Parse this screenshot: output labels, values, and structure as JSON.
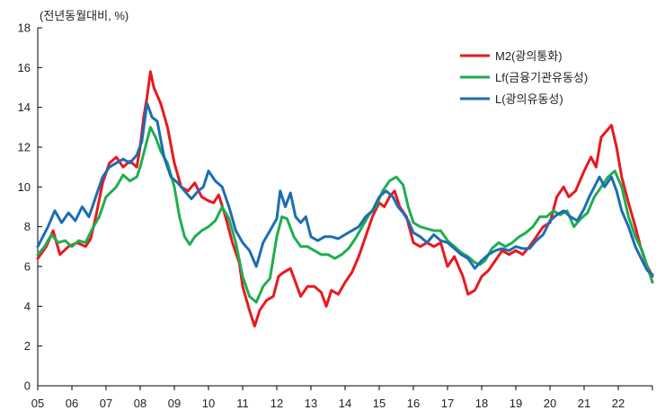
{
  "chart_data": {
    "type": "line",
    "unit_label": "(전년동월대비, %)",
    "ylim": [
      0,
      18
    ],
    "y_ticks": [
      "0",
      "2",
      "4",
      "6",
      "8",
      "10",
      "12",
      "14",
      "16",
      "18"
    ],
    "xlim": [
      2005.0,
      2023.0
    ],
    "x_ticks": [
      "05",
      "06",
      "07",
      "08",
      "09",
      "10",
      "11",
      "12",
      "13",
      "14",
      "15",
      "16",
      "17",
      "18",
      "19",
      "20",
      "21",
      "22"
    ],
    "legend_position": "top-right",
    "series": [
      {
        "name": "M2(광의통화)",
        "color": "#e8191e",
        "points": [
          [
            2005.0,
            6.4
          ],
          [
            2005.25,
            7.0
          ],
          [
            2005.45,
            7.8
          ],
          [
            2005.65,
            6.6
          ],
          [
            2005.9,
            7.0
          ],
          [
            2006.15,
            7.2
          ],
          [
            2006.4,
            7.0
          ],
          [
            2006.55,
            7.4
          ],
          [
            2006.7,
            8.5
          ],
          [
            2006.9,
            10.2
          ],
          [
            2007.1,
            11.2
          ],
          [
            2007.3,
            11.5
          ],
          [
            2007.5,
            11.0
          ],
          [
            2007.7,
            11.3
          ],
          [
            2007.9,
            11.0
          ],
          [
            2008.0,
            12.0
          ],
          [
            2008.1,
            13.5
          ],
          [
            2008.2,
            14.5
          ],
          [
            2008.3,
            15.8
          ],
          [
            2008.4,
            15.0
          ],
          [
            2008.6,
            14.2
          ],
          [
            2008.8,
            13.0
          ],
          [
            2009.0,
            11.2
          ],
          [
            2009.2,
            10.0
          ],
          [
            2009.4,
            9.8
          ],
          [
            2009.6,
            10.2
          ],
          [
            2009.8,
            9.5
          ],
          [
            2010.0,
            9.3
          ],
          [
            2010.15,
            9.2
          ],
          [
            2010.3,
            9.6
          ],
          [
            2010.5,
            8.5
          ],
          [
            2010.7,
            7.2
          ],
          [
            2010.9,
            6.2
          ],
          [
            2011.0,
            5.0
          ],
          [
            2011.2,
            3.8
          ],
          [
            2011.35,
            3.0
          ],
          [
            2011.5,
            3.8
          ],
          [
            2011.7,
            4.3
          ],
          [
            2011.9,
            4.5
          ],
          [
            2012.05,
            5.5
          ],
          [
            2012.2,
            5.7
          ],
          [
            2012.4,
            5.9
          ],
          [
            2012.55,
            5.2
          ],
          [
            2012.7,
            4.5
          ],
          [
            2012.9,
            5.0
          ],
          [
            2013.1,
            5.0
          ],
          [
            2013.3,
            4.7
          ],
          [
            2013.45,
            4.0
          ],
          [
            2013.6,
            4.8
          ],
          [
            2013.8,
            4.6
          ],
          [
            2014.0,
            5.2
          ],
          [
            2014.2,
            5.7
          ],
          [
            2014.4,
            6.5
          ],
          [
            2014.6,
            7.5
          ],
          [
            2014.8,
            8.5
          ],
          [
            2015.0,
            9.2
          ],
          [
            2015.15,
            9.0
          ],
          [
            2015.3,
            9.5
          ],
          [
            2015.45,
            9.8
          ],
          [
            2015.6,
            9.0
          ],
          [
            2015.8,
            8.5
          ],
          [
            2016.0,
            7.2
          ],
          [
            2016.2,
            7.0
          ],
          [
            2016.4,
            7.2
          ],
          [
            2016.6,
            7.0
          ],
          [
            2016.8,
            7.2
          ],
          [
            2017.0,
            6.0
          ],
          [
            2017.2,
            6.5
          ],
          [
            2017.45,
            5.5
          ],
          [
            2017.6,
            4.6
          ],
          [
            2017.8,
            4.8
          ],
          [
            2018.0,
            5.5
          ],
          [
            2018.2,
            5.8
          ],
          [
            2018.4,
            6.3
          ],
          [
            2018.6,
            6.8
          ],
          [
            2018.8,
            6.6
          ],
          [
            2019.0,
            6.8
          ],
          [
            2019.2,
            6.6
          ],
          [
            2019.4,
            7.0
          ],
          [
            2019.6,
            7.5
          ],
          [
            2019.8,
            8.0
          ],
          [
            2020.0,
            8.2
          ],
          [
            2020.2,
            9.5
          ],
          [
            2020.4,
            10.0
          ],
          [
            2020.55,
            9.5
          ],
          [
            2020.75,
            9.8
          ],
          [
            2021.0,
            10.8
          ],
          [
            2021.2,
            11.5
          ],
          [
            2021.35,
            11.0
          ],
          [
            2021.5,
            12.5
          ],
          [
            2021.65,
            12.8
          ],
          [
            2021.8,
            13.1
          ],
          [
            2021.95,
            12.0
          ],
          [
            2022.1,
            10.5
          ],
          [
            2022.3,
            9.2
          ],
          [
            2022.5,
            8.0
          ],
          [
            2022.65,
            7.0
          ],
          [
            2022.8,
            6.2
          ],
          [
            2023.0,
            5.5
          ]
        ]
      },
      {
        "name": "Lf(금융기관유동성)",
        "color": "#1fae50",
        "points": [
          [
            2005.0,
            6.6
          ],
          [
            2005.2,
            7.0
          ],
          [
            2005.4,
            7.6
          ],
          [
            2005.6,
            7.2
          ],
          [
            2005.8,
            7.3
          ],
          [
            2006.0,
            7.0
          ],
          [
            2006.2,
            7.3
          ],
          [
            2006.4,
            7.2
          ],
          [
            2006.6,
            7.9
          ],
          [
            2006.8,
            8.5
          ],
          [
            2007.0,
            9.5
          ],
          [
            2007.3,
            10.0
          ],
          [
            2007.5,
            10.6
          ],
          [
            2007.7,
            10.3
          ],
          [
            2007.9,
            10.5
          ],
          [
            2008.0,
            11.0
          ],
          [
            2008.15,
            12.0
          ],
          [
            2008.3,
            13.0
          ],
          [
            2008.45,
            12.5
          ],
          [
            2008.6,
            11.8
          ],
          [
            2008.8,
            11.2
          ],
          [
            2009.0,
            10.0
          ],
          [
            2009.15,
            8.5
          ],
          [
            2009.3,
            7.5
          ],
          [
            2009.45,
            7.1
          ],
          [
            2009.6,
            7.5
          ],
          [
            2009.8,
            7.8
          ],
          [
            2010.0,
            8.0
          ],
          [
            2010.2,
            8.3
          ],
          [
            2010.4,
            9.0
          ],
          [
            2010.6,
            8.4
          ],
          [
            2010.8,
            7.2
          ],
          [
            2011.0,
            5.5
          ],
          [
            2011.2,
            4.5
          ],
          [
            2011.4,
            4.2
          ],
          [
            2011.6,
            5.0
          ],
          [
            2011.8,
            5.4
          ],
          [
            2012.0,
            7.5
          ],
          [
            2012.15,
            8.5
          ],
          [
            2012.3,
            8.4
          ],
          [
            2012.5,
            7.5
          ],
          [
            2012.7,
            7.0
          ],
          [
            2012.9,
            7.0
          ],
          [
            2013.1,
            6.8
          ],
          [
            2013.3,
            6.6
          ],
          [
            2013.5,
            6.6
          ],
          [
            2013.7,
            6.4
          ],
          [
            2013.9,
            6.6
          ],
          [
            2014.1,
            6.9
          ],
          [
            2014.3,
            7.4
          ],
          [
            2014.5,
            8.0
          ],
          [
            2014.7,
            8.6
          ],
          [
            2014.9,
            9.0
          ],
          [
            2015.1,
            9.8
          ],
          [
            2015.3,
            10.3
          ],
          [
            2015.5,
            10.5
          ],
          [
            2015.7,
            10.1
          ],
          [
            2015.85,
            9.0
          ],
          [
            2016.0,
            8.2
          ],
          [
            2016.2,
            8.0
          ],
          [
            2016.4,
            7.9
          ],
          [
            2016.6,
            7.8
          ],
          [
            2016.8,
            7.8
          ],
          [
            2017.0,
            7.3
          ],
          [
            2017.2,
            7.0
          ],
          [
            2017.4,
            6.7
          ],
          [
            2017.6,
            6.5
          ],
          [
            2017.8,
            6.2
          ],
          [
            2017.95,
            6.1
          ],
          [
            2018.1,
            6.3
          ],
          [
            2018.3,
            6.9
          ],
          [
            2018.5,
            7.2
          ],
          [
            2018.7,
            7.0
          ],
          [
            2018.9,
            7.2
          ],
          [
            2019.1,
            7.5
          ],
          [
            2019.3,
            7.7
          ],
          [
            2019.5,
            8.0
          ],
          [
            2019.7,
            8.5
          ],
          [
            2019.9,
            8.5
          ],
          [
            2020.1,
            8.8
          ],
          [
            2020.3,
            8.6
          ],
          [
            2020.5,
            8.8
          ],
          [
            2020.7,
            8.0
          ],
          [
            2020.9,
            8.4
          ],
          [
            2021.1,
            8.7
          ],
          [
            2021.3,
            9.5
          ],
          [
            2021.5,
            10.0
          ],
          [
            2021.7,
            10.5
          ],
          [
            2021.9,
            10.8
          ],
          [
            2022.1,
            10.0
          ],
          [
            2022.3,
            8.5
          ],
          [
            2022.5,
            7.5
          ],
          [
            2022.7,
            6.8
          ],
          [
            2022.85,
            6.0
          ],
          [
            2023.0,
            5.2
          ]
        ]
      },
      {
        "name": "L(광의유동성)",
        "color": "#1c6db3",
        "points": [
          [
            2005.0,
            7.0
          ],
          [
            2005.15,
            7.5
          ],
          [
            2005.3,
            8.0
          ],
          [
            2005.5,
            8.8
          ],
          [
            2005.7,
            8.2
          ],
          [
            2005.9,
            8.7
          ],
          [
            2006.1,
            8.3
          ],
          [
            2006.3,
            9.0
          ],
          [
            2006.5,
            8.5
          ],
          [
            2006.7,
            9.5
          ],
          [
            2006.9,
            10.5
          ],
          [
            2007.1,
            11.0
          ],
          [
            2007.3,
            11.2
          ],
          [
            2007.5,
            11.4
          ],
          [
            2007.7,
            11.2
          ],
          [
            2007.9,
            11.6
          ],
          [
            2008.05,
            12.3
          ],
          [
            2008.2,
            14.2
          ],
          [
            2008.35,
            13.5
          ],
          [
            2008.5,
            13.3
          ],
          [
            2008.7,
            11.5
          ],
          [
            2008.9,
            10.5
          ],
          [
            2009.1,
            10.2
          ],
          [
            2009.3,
            9.8
          ],
          [
            2009.5,
            9.4
          ],
          [
            2009.7,
            9.8
          ],
          [
            2009.85,
            10.0
          ],
          [
            2010.0,
            10.8
          ],
          [
            2010.2,
            10.3
          ],
          [
            2010.4,
            10.0
          ],
          [
            2010.6,
            9.0
          ],
          [
            2010.8,
            7.8
          ],
          [
            2011.0,
            7.2
          ],
          [
            2011.2,
            6.8
          ],
          [
            2011.4,
            6.0
          ],
          [
            2011.6,
            7.2
          ],
          [
            2011.8,
            7.8
          ],
          [
            2012.0,
            8.4
          ],
          [
            2012.1,
            9.8
          ],
          [
            2012.25,
            9.0
          ],
          [
            2012.4,
            9.7
          ],
          [
            2012.55,
            8.5
          ],
          [
            2012.7,
            8.2
          ],
          [
            2012.85,
            8.5
          ],
          [
            2013.0,
            7.5
          ],
          [
            2013.2,
            7.3
          ],
          [
            2013.4,
            7.5
          ],
          [
            2013.6,
            7.5
          ],
          [
            2013.8,
            7.4
          ],
          [
            2014.0,
            7.6
          ],
          [
            2014.2,
            7.8
          ],
          [
            2014.4,
            8.0
          ],
          [
            2014.6,
            8.5
          ],
          [
            2014.8,
            8.8
          ],
          [
            2015.0,
            9.5
          ],
          [
            2015.2,
            9.8
          ],
          [
            2015.4,
            9.5
          ],
          [
            2015.55,
            9.0
          ],
          [
            2015.7,
            8.7
          ],
          [
            2015.85,
            8.3
          ],
          [
            2016.0,
            7.7
          ],
          [
            2016.2,
            7.5
          ],
          [
            2016.4,
            7.2
          ],
          [
            2016.6,
            7.6
          ],
          [
            2016.8,
            7.3
          ],
          [
            2017.0,
            7.2
          ],
          [
            2017.2,
            6.9
          ],
          [
            2017.4,
            6.6
          ],
          [
            2017.6,
            6.4
          ],
          [
            2017.8,
            5.9
          ],
          [
            2018.0,
            6.3
          ],
          [
            2018.2,
            6.6
          ],
          [
            2018.4,
            6.8
          ],
          [
            2018.6,
            6.9
          ],
          [
            2018.8,
            6.8
          ],
          [
            2019.0,
            7.0
          ],
          [
            2019.2,
            6.9
          ],
          [
            2019.4,
            6.9
          ],
          [
            2019.6,
            7.3
          ],
          [
            2019.8,
            7.6
          ],
          [
            2020.0,
            8.3
          ],
          [
            2020.2,
            8.6
          ],
          [
            2020.4,
            8.8
          ],
          [
            2020.6,
            8.5
          ],
          [
            2020.8,
            8.3
          ],
          [
            2021.0,
            8.9
          ],
          [
            2021.15,
            9.5
          ],
          [
            2021.3,
            10.0
          ],
          [
            2021.45,
            10.5
          ],
          [
            2021.6,
            10.0
          ],
          [
            2021.8,
            10.5
          ],
          [
            2021.95,
            9.8
          ],
          [
            2022.1,
            8.8
          ],
          [
            2022.3,
            8.0
          ],
          [
            2022.5,
            7.0
          ],
          [
            2022.7,
            6.3
          ],
          [
            2022.85,
            5.8
          ],
          [
            2023.0,
            5.6
          ]
        ]
      }
    ]
  }
}
